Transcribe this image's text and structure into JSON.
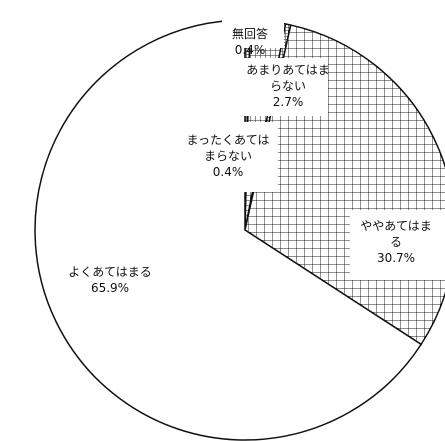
{
  "chart_data": {
    "type": "pie",
    "title": "",
    "slices": [
      {
        "label_lines": [
          "無回答"
        ],
        "pct_text": "0.4%",
        "value": 0.4,
        "pattern": "dense"
      },
      {
        "label_lines": [
          "あまりあてはま",
          "らない"
        ],
        "pct_text": "2.7%",
        "value": 2.7,
        "pattern": "hatch"
      },
      {
        "label_lines": [
          "まったくあては",
          "まらない"
        ],
        "pct_text": "0.4%",
        "value": 0.4,
        "pattern": "dense"
      },
      {
        "label_lines": [
          "ややあてはま",
          "る"
        ],
        "pct_text": "30.7%",
        "value": 30.7,
        "pattern": "grid"
      },
      {
        "label_lines": [
          "よくあてはまる"
        ],
        "pct_text": "65.9%",
        "value": 65.9,
        "pattern": "white"
      }
    ],
    "colors": {
      "stroke": "#111111",
      "fill_white": "#ffffff",
      "hatch": "#222222"
    }
  }
}
